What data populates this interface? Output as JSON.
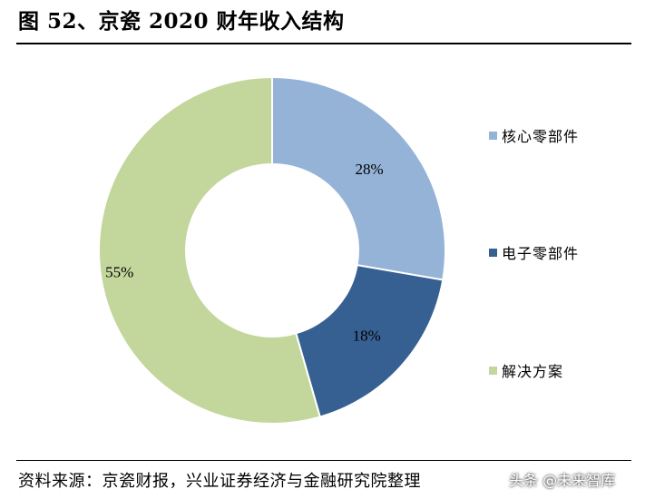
{
  "header": {
    "title": "图 52、京瓷 2020 财年收入结构"
  },
  "chart_data": {
    "type": "pie",
    "subtype": "donut",
    "title": "图 52、京瓷 2020 财年收入结构",
    "categories": [
      "核心零部件",
      "电子零部件",
      "解决方案"
    ],
    "values": [
      28,
      18,
      55
    ],
    "value_labels": [
      "28%",
      "18%",
      "55%"
    ],
    "unit": "%",
    "colors": [
      "#95b3d7",
      "#376092",
      "#c3d69b"
    ],
    "legend_position": "right"
  },
  "footer": {
    "source": "资料来源：京瓷财报，兴业证券经济与金融研究院整理",
    "watermark": "头条 @未来智库"
  }
}
